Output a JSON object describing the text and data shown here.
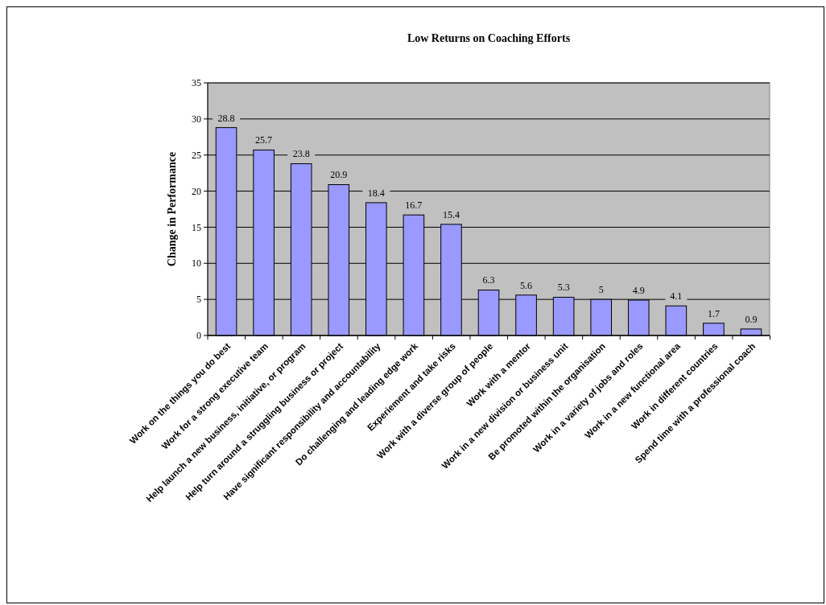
{
  "chart_data": {
    "type": "bar",
    "title": "Low Returns on Coaching Efforts",
    "ylabel": "Change in Performance",
    "categories": [
      "Work on the things you do best",
      "Work for a strong executive team",
      "Help launch a new business, initiative, or program",
      "Help turn around a struggling business or project",
      "Have significant responsibility and accountability",
      "Do challenging and leading edge work",
      "Experiement and take risks",
      "Work with a diverse group of people",
      "Work with a mentor",
      "Work in a new division or business unit",
      "Be promoted within the organisation",
      "Work in a variety of jobs and roles",
      "Work in a new functional area",
      "Work in different countries",
      "Spend time with a professional coach"
    ],
    "values": [
      28.8,
      25.7,
      23.8,
      20.9,
      18.4,
      16.7,
      15.4,
      6.3,
      5.6,
      5.3,
      5,
      4.9,
      4.1,
      1.7,
      0.9
    ],
    "color": "#9999ff",
    "ylim": [
      0,
      35
    ],
    "yticks": [
      0,
      5,
      10,
      15,
      20,
      25,
      30,
      35
    ],
    "grid": "y",
    "data_labels": true
  }
}
